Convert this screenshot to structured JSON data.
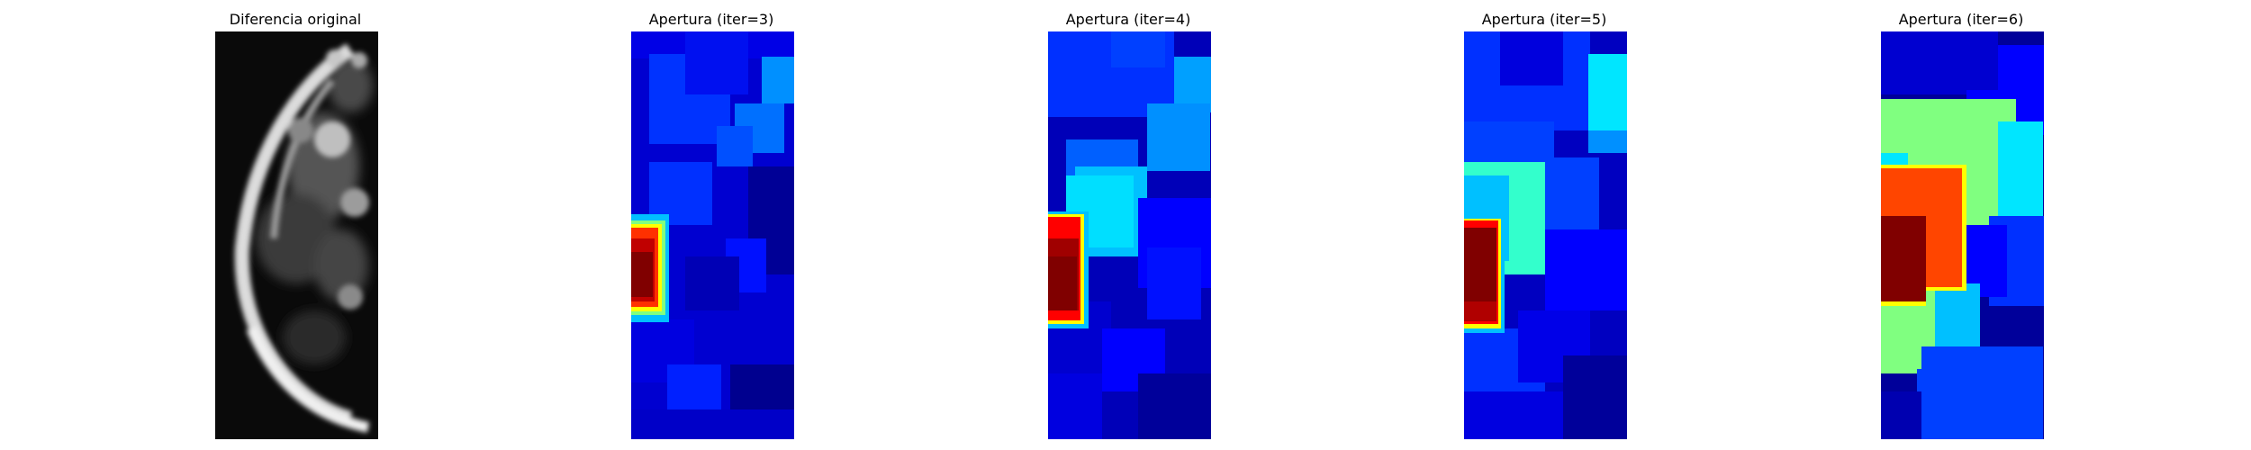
{
  "panels": [
    {
      "title": "Diferencia original",
      "kind": "grayscale difference image"
    },
    {
      "title": "Apertura (iter=3)",
      "kind": "jet colormap"
    },
    {
      "title": "Apertura (iter=4)",
      "kind": "jet colormap"
    },
    {
      "title": "Apertura (iter=5)",
      "kind": "jet colormap"
    },
    {
      "title": "Apertura (iter=6)",
      "kind": "jet colormap"
    }
  ],
  "colors": {
    "jet_dark_blue": "#00008f",
    "jet_blue": "#0000ff",
    "jet_mid_blue": "#0033ff",
    "jet_light_blue": "#0080ff",
    "jet_cyan": "#00ddff",
    "jet_aqua": "#33ffcc",
    "jet_green": "#80ff80",
    "jet_yellow": "#ffff00",
    "jet_orange": "#ff4500",
    "jet_red": "#ff0000",
    "jet_dark_red": "#800000"
  }
}
